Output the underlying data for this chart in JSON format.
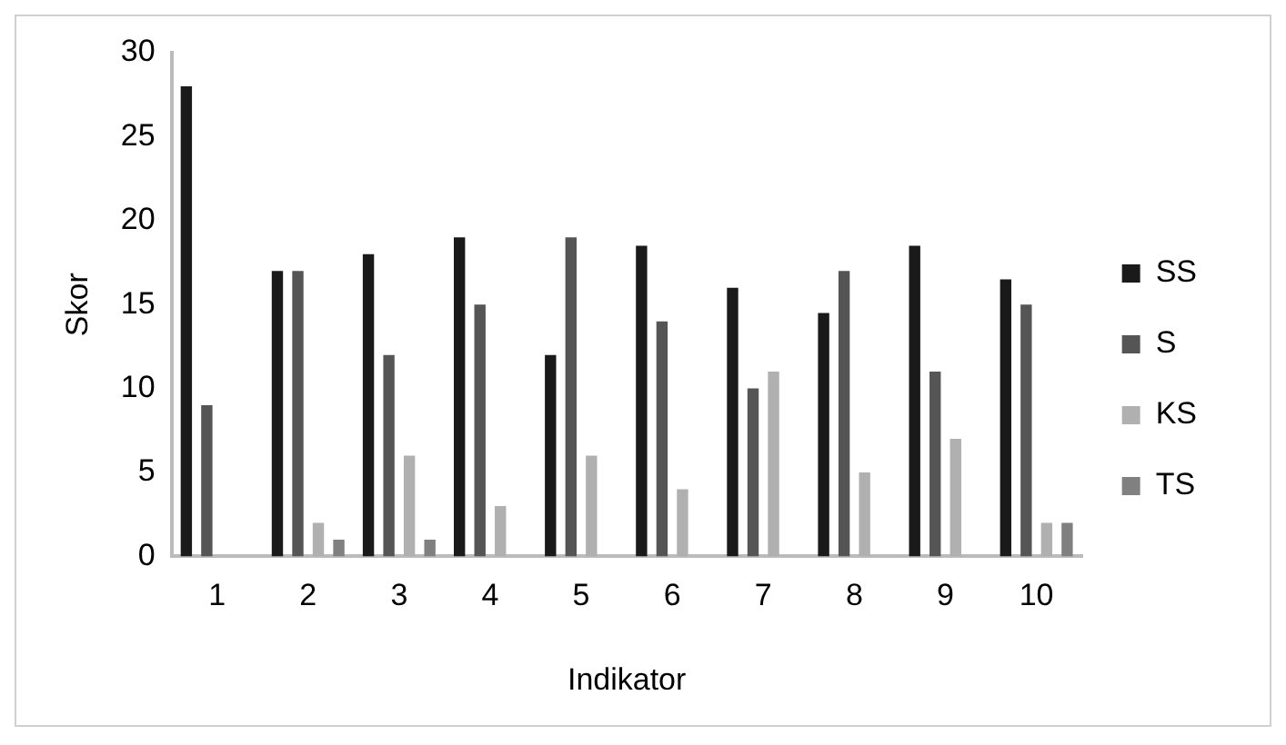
{
  "chart_data": {
    "type": "bar",
    "xlabel": "Indikator",
    "ylabel": "Skor",
    "categories": [
      "1",
      "2",
      "3",
      "4",
      "5",
      "6",
      "7",
      "8",
      "9",
      "10"
    ],
    "series": [
      {
        "name": "SS",
        "color": "#1a1a1a",
        "values": [
          28,
          17,
          18,
          19,
          12,
          18.5,
          16,
          14.5,
          18.5,
          16.5
        ]
      },
      {
        "name": "S",
        "color": "#555555",
        "values": [
          9,
          17,
          12,
          15,
          19,
          14,
          10,
          17,
          11,
          15
        ]
      },
      {
        "name": "KS",
        "color": "#b0b0b0",
        "values": [
          0,
          2,
          6,
          3,
          6,
          4,
          11,
          5,
          7,
          2
        ]
      },
      {
        "name": "TS",
        "color": "#808080",
        "values": [
          0,
          1,
          1,
          0,
          0,
          0,
          0,
          0,
          0,
          2
        ]
      }
    ],
    "ylim": [
      0,
      30
    ],
    "yticks": [
      0,
      5,
      10,
      15,
      20,
      25,
      30
    ],
    "grid": false,
    "legend": "right"
  }
}
